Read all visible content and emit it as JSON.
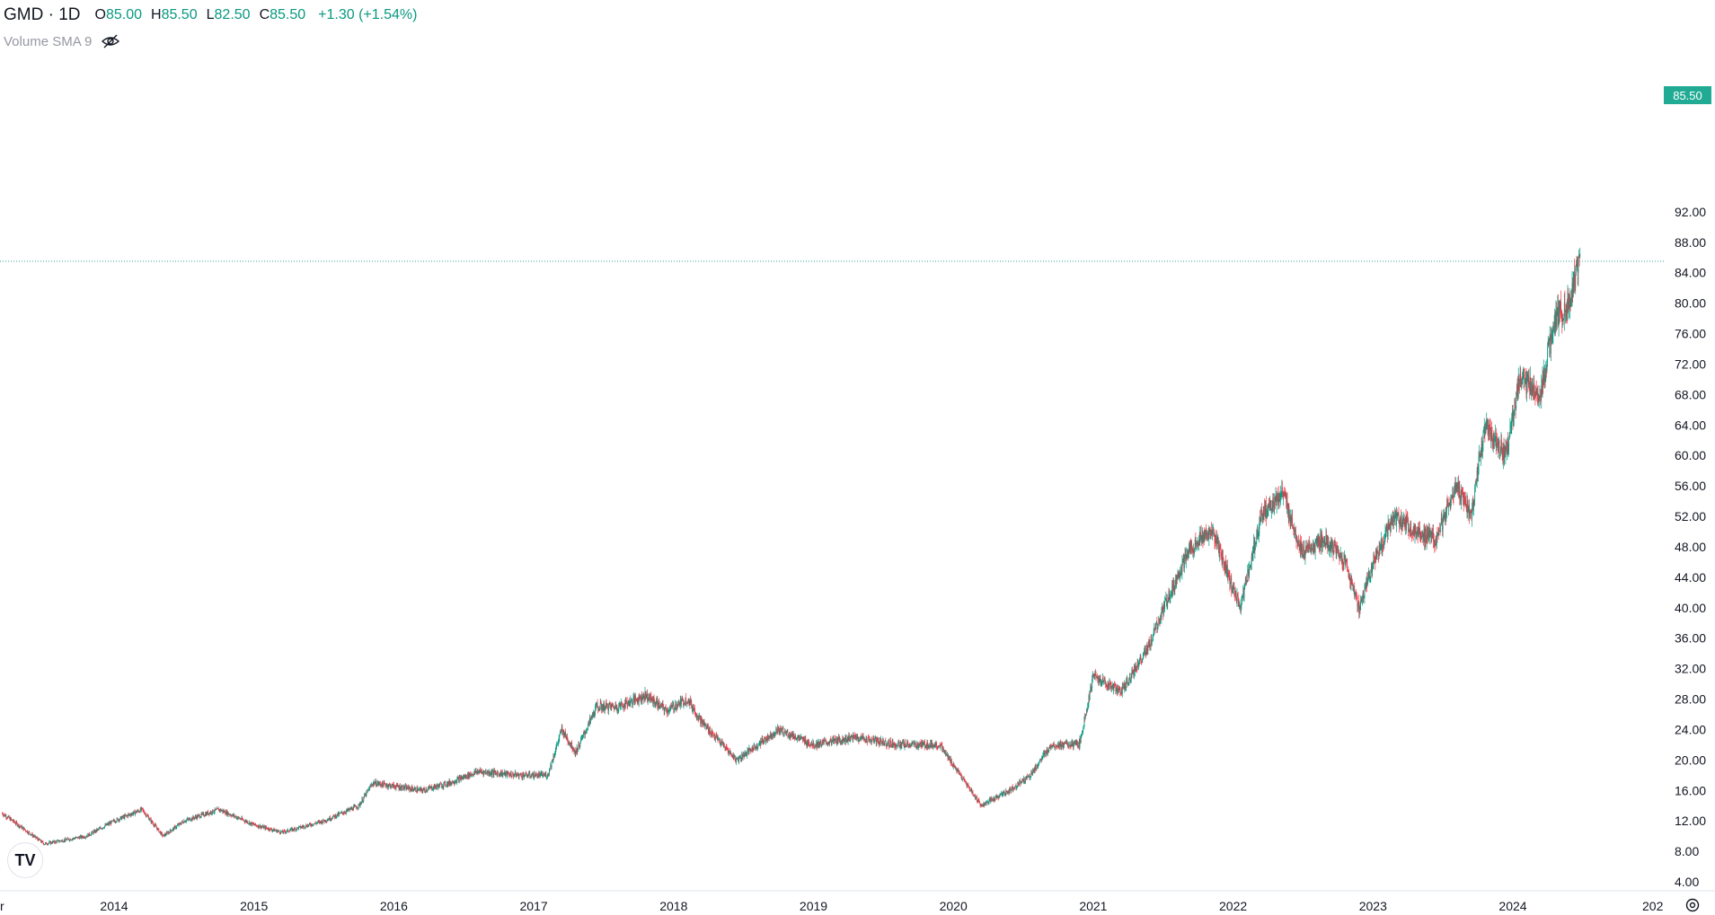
{
  "header": {
    "symbol": "GMD · 1D",
    "open_label": "O",
    "open": "85.00",
    "high_label": "H",
    "high": "85.50",
    "low_label": "L",
    "low": "82.50",
    "close_label": "C",
    "close": "85.50",
    "change": "+1.30 (+1.54%)"
  },
  "indicator": {
    "label": "Volume SMA 9",
    "icon": "eye-hidden-icon"
  },
  "last_price_tag": "85.50",
  "colors": {
    "up": "#089981",
    "down": "#f23645",
    "last_price": "#22ab94"
  },
  "chart_data": {
    "type": "candlestick",
    "x_scale": "time (daily)",
    "y_range": [
      0,
      96
    ],
    "y_tick_labels": [
      "4.00",
      "8.00",
      "12.00",
      "16.00",
      "20.00",
      "24.00",
      "28.00",
      "32.00",
      "36.00",
      "40.00",
      "44.00",
      "48.00",
      "52.00",
      "56.00",
      "60.00",
      "64.00",
      "68.00",
      "72.00",
      "76.00",
      "80.00",
      "84.00",
      "88.00",
      "92.00"
    ],
    "x_tick_labels": [
      "2014",
      "2015",
      "2016",
      "2017",
      "2018",
      "2019",
      "2020",
      "2021",
      "2022",
      "2023",
      "2024",
      "202"
    ],
    "last_price": 85.5,
    "approx_close_path": [
      {
        "date": "2013.2",
        "close": 13
      },
      {
        "date": "2013.5",
        "close": 9
      },
      {
        "date": "2013.8",
        "close": 10
      },
      {
        "date": "2014.0",
        "close": 12
      },
      {
        "date": "2014.2",
        "close": 13.5
      },
      {
        "date": "2014.35",
        "close": 10
      },
      {
        "date": "2014.5",
        "close": 12
      },
      {
        "date": "2014.75",
        "close": 13.5
      },
      {
        "date": "2015.0",
        "close": 11.5
      },
      {
        "date": "2015.2",
        "close": 10.5
      },
      {
        "date": "2015.5",
        "close": 12
      },
      {
        "date": "2015.75",
        "close": 14
      },
      {
        "date": "2015.85",
        "close": 17
      },
      {
        "date": "2016.2",
        "close": 16
      },
      {
        "date": "2016.4",
        "close": 17
      },
      {
        "date": "2016.6",
        "close": 18.5
      },
      {
        "date": "2016.9",
        "close": 18
      },
      {
        "date": "2017.1",
        "close": 18
      },
      {
        "date": "2017.2",
        "close": 24
      },
      {
        "date": "2017.3",
        "close": 21
      },
      {
        "date": "2017.45",
        "close": 27
      },
      {
        "date": "2017.6",
        "close": 27
      },
      {
        "date": "2017.8",
        "close": 28.5
      },
      {
        "date": "2017.95",
        "close": 26.5
      },
      {
        "date": "2018.1",
        "close": 28
      },
      {
        "date": "2018.2",
        "close": 25
      },
      {
        "date": "2018.35",
        "close": 22
      },
      {
        "date": "2018.45",
        "close": 20
      },
      {
        "date": "2018.6",
        "close": 22
      },
      {
        "date": "2018.75",
        "close": 24
      },
      {
        "date": "2019.0",
        "close": 22
      },
      {
        "date": "2019.3",
        "close": 23
      },
      {
        "date": "2019.6",
        "close": 22
      },
      {
        "date": "2019.9",
        "close": 22
      },
      {
        "date": "2020.05",
        "close": 18
      },
      {
        "date": "2020.2",
        "close": 14
      },
      {
        "date": "2020.4",
        "close": 16
      },
      {
        "date": "2020.55",
        "close": 18
      },
      {
        "date": "2020.7",
        "close": 22
      },
      {
        "date": "2020.9",
        "close": 22
      },
      {
        "date": "2021.0",
        "close": 31
      },
      {
        "date": "2021.2",
        "close": 29
      },
      {
        "date": "2021.4",
        "close": 35
      },
      {
        "date": "2021.55",
        "close": 42
      },
      {
        "date": "2021.7",
        "close": 48
      },
      {
        "date": "2021.85",
        "close": 50
      },
      {
        "date": "2022.05",
        "close": 40
      },
      {
        "date": "2022.2",
        "close": 52
      },
      {
        "date": "2022.35",
        "close": 55
      },
      {
        "date": "2022.5",
        "close": 47
      },
      {
        "date": "2022.65",
        "close": 49
      },
      {
        "date": "2022.8",
        "close": 46
      },
      {
        "date": "2022.9",
        "close": 40
      },
      {
        "date": "2023.0",
        "close": 46
      },
      {
        "date": "2023.15",
        "close": 52
      },
      {
        "date": "2023.3",
        "close": 50
      },
      {
        "date": "2023.45",
        "close": 49
      },
      {
        "date": "2023.6",
        "close": 56
      },
      {
        "date": "2023.7",
        "close": 52
      },
      {
        "date": "2023.8",
        "close": 64
      },
      {
        "date": "2023.95",
        "close": 60
      },
      {
        "date": "2024.05",
        "close": 70
      },
      {
        "date": "2024.2",
        "close": 68
      },
      {
        "date": "2024.3",
        "close": 78
      },
      {
        "date": "2024.4",
        "close": 80
      },
      {
        "date": "2024.48",
        "close": 85.5
      }
    ]
  }
}
